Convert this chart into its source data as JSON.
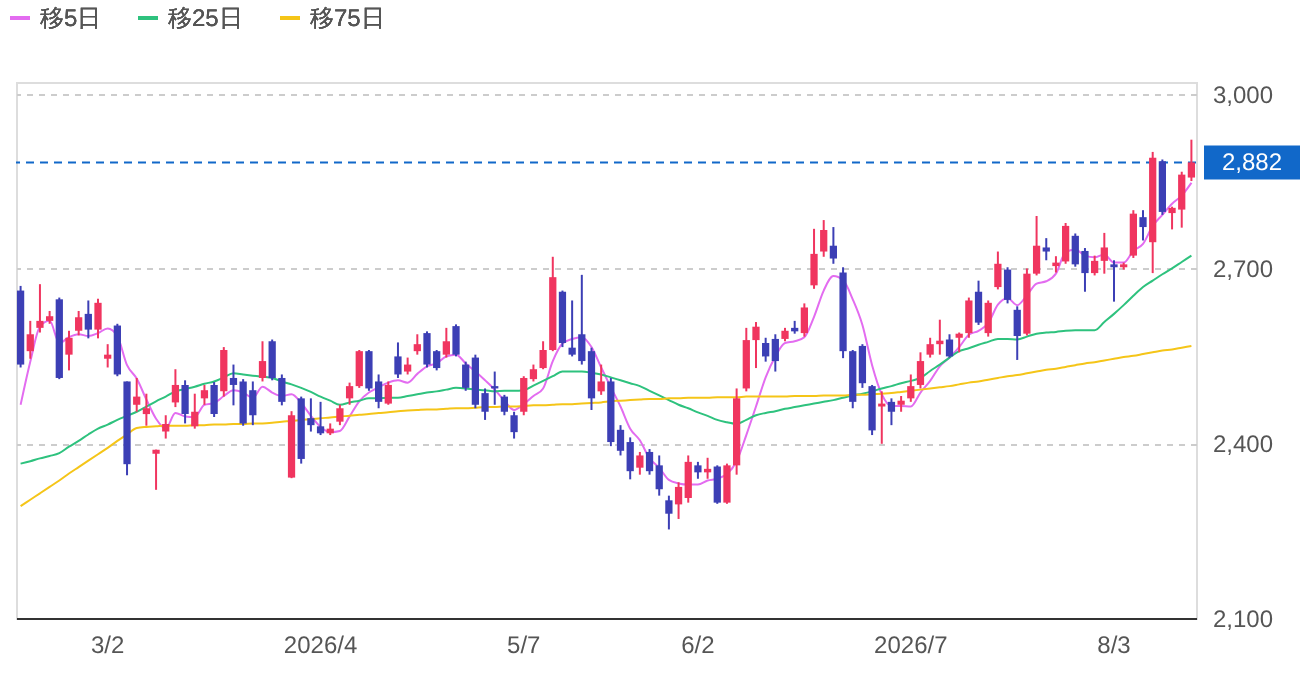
{
  "chart_data": {
    "type": "candlestick",
    "categories": [
      null,
      null,
      null,
      null,
      null,
      null,
      null,
      null,
      null,
      "3/2",
      null,
      null,
      null,
      null,
      null,
      null,
      null,
      null,
      null,
      null,
      null,
      null,
      null,
      null,
      null,
      null,
      null,
      null,
      null,
      null,
      null,
      "2026/4",
      null,
      null,
      null,
      null,
      null,
      null,
      null,
      null,
      null,
      null,
      null,
      null,
      null,
      null,
      null,
      null,
      null,
      null,
      null,
      null,
      "5/7",
      null,
      null,
      null,
      null,
      null,
      null,
      null,
      null,
      null,
      null,
      null,
      null,
      null,
      null,
      null,
      null,
      null,
      "6/2",
      null,
      null,
      null,
      null,
      null,
      null,
      null,
      null,
      null,
      null,
      null,
      null,
      null,
      null,
      null,
      null,
      null,
      null,
      null,
      null,
      null,
      "2026/7",
      null,
      null,
      null,
      null,
      null,
      null,
      null,
      null,
      null,
      null,
      null,
      null,
      null,
      null,
      null,
      null,
      null,
      null,
      null,
      null,
      "8/3",
      null,
      null,
      null,
      null,
      null,
      null,
      null,
      null
    ],
    "ohlc": [
      [
        2662,
        2670,
        2530,
        2535
      ],
      [
        2558,
        2610,
        2545,
        2587
      ],
      [
        2598,
        2673,
        2590,
        2610
      ],
      [
        2610,
        2627,
        2605,
        2618
      ],
      [
        2647,
        2650,
        2510,
        2512
      ],
      [
        2552,
        2593,
        2525,
        2581
      ],
      [
        2593,
        2627,
        2585,
        2616
      ],
      [
        2622,
        2645,
        2580,
        2595
      ],
      [
        2595,
        2648,
        2580,
        2641
      ],
      [
        2545,
        2570,
        2530,
        2552
      ],
      [
        2602,
        2605,
        2515,
        2518
      ],
      [
        2506,
        2506,
        2345,
        2364
      ],
      [
        2466,
        2512,
        2454,
        2480
      ],
      [
        2450,
        2485,
        2430,
        2460
      ],
      [
        2382,
        2389,
        2320,
        2389
      ],
      [
        2420,
        2448,
        2408,
        2433
      ],
      [
        2470,
        2527,
        2462,
        2500
      ],
      [
        2500,
        2508,
        2434,
        2450
      ],
      [
        2429,
        2485,
        2425,
        2454
      ],
      [
        2477,
        2500,
        2466,
        2491
      ],
      [
        2500,
        2505,
        2445,
        2450
      ],
      [
        2489,
        2565,
        2480,
        2560
      ],
      [
        2512,
        2535,
        2465,
        2500
      ],
      [
        2506,
        2510,
        2430,
        2434
      ],
      [
        2491,
        2506,
        2431,
        2448
      ],
      [
        2512,
        2575,
        2506,
        2541
      ],
      [
        2575,
        2578,
        2508,
        2512
      ],
      [
        2512,
        2518,
        2465,
        2471
      ],
      [
        2341,
        2455,
        2340,
        2448
      ],
      [
        2477,
        2480,
        2365,
        2373
      ],
      [
        2443,
        2477,
        2420,
        2431
      ],
      [
        2429,
        2471,
        2414,
        2417
      ],
      [
        2417,
        2434,
        2414,
        2425
      ],
      [
        2437,
        2466,
        2431,
        2460
      ],
      [
        2477,
        2504,
        2466,
        2498
      ],
      [
        2498,
        2560,
        2495,
        2558
      ],
      [
        2558,
        2560,
        2490,
        2494
      ],
      [
        2506,
        2518,
        2460,
        2471
      ],
      [
        2468,
        2506,
        2466,
        2500
      ],
      [
        2549,
        2573,
        2512,
        2518
      ],
      [
        2523,
        2547,
        2518,
        2535
      ],
      [
        2558,
        2587,
        2552,
        2570
      ],
      [
        2589,
        2592,
        2530,
        2535
      ],
      [
        2558,
        2560,
        2525,
        2529
      ],
      [
        2552,
        2598,
        2547,
        2575
      ],
      [
        2601,
        2604,
        2549,
        2552
      ],
      [
        2535,
        2540,
        2490,
        2495
      ],
      [
        2547,
        2552,
        2460,
        2466
      ],
      [
        2486,
        2494,
        2440,
        2454
      ],
      [
        2498,
        2523,
        2466,
        2494
      ],
      [
        2480,
        2483,
        2448,
        2454
      ],
      [
        2448,
        2454,
        2408,
        2419
      ],
      [
        2454,
        2515,
        2448,
        2512
      ],
      [
        2510,
        2535,
        2506,
        2527
      ],
      [
        2529,
        2575,
        2527,
        2560
      ],
      [
        2560,
        2720,
        2558,
        2685
      ],
      [
        2660,
        2662,
        2565,
        2572
      ],
      [
        2564,
        2645,
        2549,
        2552
      ],
      [
        2587,
        2689,
        2535,
        2541
      ],
      [
        2558,
        2564,
        2457,
        2477
      ],
      [
        2489,
        2535,
        2483,
        2506
      ],
      [
        2506,
        2512,
        2395,
        2402
      ],
      [
        2423,
        2431,
        2379,
        2387
      ],
      [
        2402,
        2410,
        2338,
        2352
      ],
      [
        2358,
        2385,
        2346,
        2379
      ],
      [
        2385,
        2390,
        2346,
        2352
      ],
      [
        2362,
        2379,
        2310,
        2321
      ],
      [
        2302,
        2310,
        2252,
        2279
      ],
      [
        2295,
        2333,
        2270,
        2325
      ],
      [
        2306,
        2379,
        2298,
        2368
      ],
      [
        2362,
        2368,
        2339,
        2350
      ],
      [
        2350,
        2375,
        2339,
        2356
      ],
      [
        2360,
        2362,
        2296,
        2298
      ],
      [
        2298,
        2365,
        2296,
        2362
      ],
      [
        2362,
        2494,
        2346,
        2477
      ],
      [
        2494,
        2598,
        2489,
        2577
      ],
      [
        2577,
        2608,
        2529,
        2600
      ],
      [
        2572,
        2581,
        2540,
        2549
      ],
      [
        2579,
        2587,
        2523,
        2541
      ],
      [
        2579,
        2598,
        2575,
        2593
      ],
      [
        2598,
        2610,
        2588,
        2592
      ],
      [
        2589,
        2640,
        2583,
        2633
      ],
      [
        2671,
        2768,
        2665,
        2725
      ],
      [
        2729,
        2783,
        2720,
        2766
      ],
      [
        2739,
        2771,
        2708,
        2717
      ],
      [
        2693,
        2702,
        2546,
        2558
      ],
      [
        2558,
        2560,
        2460,
        2471
      ],
      [
        2567,
        2570,
        2495,
        2503
      ],
      [
        2498,
        2500,
        2414,
        2422
      ],
      [
        2463,
        2489,
        2399,
        2468
      ],
      [
        2471,
        2477,
        2431,
        2454
      ],
      [
        2466,
        2481,
        2454,
        2473
      ],
      [
        2477,
        2518,
        2471,
        2498
      ],
      [
        2500,
        2556,
        2494,
        2541
      ],
      [
        2552,
        2581,
        2547,
        2570
      ],
      [
        2570,
        2612,
        2552,
        2576
      ],
      [
        2578,
        2587,
        2547,
        2549
      ],
      [
        2581,
        2590,
        2556,
        2588
      ],
      [
        2589,
        2650,
        2581,
        2645
      ],
      [
        2660,
        2679,
        2603,
        2607
      ],
      [
        2589,
        2645,
        2583,
        2641
      ],
      [
        2668,
        2729,
        2664,
        2708
      ],
      [
        2698,
        2702,
        2640,
        2646
      ],
      [
        2629,
        2635,
        2543,
        2584
      ],
      [
        2588,
        2700,
        2585,
        2691
      ],
      [
        2691,
        2790,
        2688,
        2739
      ],
      [
        2736,
        2752,
        2714,
        2729
      ],
      [
        2704,
        2721,
        2693,
        2710
      ],
      [
        2712,
        2778,
        2708,
        2773
      ],
      [
        2756,
        2760,
        2703,
        2707
      ],
      [
        2730,
        2735,
        2660,
        2692
      ],
      [
        2692,
        2722,
        2688,
        2713
      ],
      [
        2713,
        2761,
        2691,
        2736
      ],
      [
        2707,
        2714,
        2643,
        2702
      ],
      [
        2702,
        2710,
        2698,
        2707
      ],
      [
        2722,
        2800,
        2718,
        2794
      ],
      [
        2788,
        2800,
        2748,
        2771
      ],
      [
        2745,
        2900,
        2692,
        2890
      ],
      [
        2884,
        2887,
        2792,
        2797
      ],
      [
        2795,
        2806,
        2767,
        2804
      ],
      [
        2801,
        2866,
        2770,
        2861
      ],
      [
        2856,
        2921,
        2850,
        2882
      ]
    ],
    "colors": [
      "#3c3fb5",
      "#f0355f",
      "#f0355f",
      "#f0355f",
      "#3c3fb5",
      "#f0355f",
      "#f0355f",
      "#3c3fb5",
      "#f0355f",
      "#f0355f",
      "#3c3fb5",
      "#3c3fb5",
      "#f0355f",
      "#f0355f",
      "#f0355f",
      "#f0355f",
      "#f0355f",
      "#3c3fb5",
      "#f0355f",
      "#f0355f",
      "#3c3fb5",
      "#f0355f",
      "#3c3fb5",
      "#3c3fb5",
      "#3c3fb5",
      "#f0355f",
      "#3c3fb5",
      "#3c3fb5",
      "#f0355f",
      "#3c3fb5",
      "#3c3fb5",
      "#3c3fb5",
      "#f0355f",
      "#f0355f",
      "#f0355f",
      "#f0355f",
      "#3c3fb5",
      "#3c3fb5",
      "#f0355f",
      "#3c3fb5",
      "#f0355f",
      "#f0355f",
      "#3c3fb5",
      "#3c3fb5",
      "#f0355f",
      "#3c3fb5",
      "#3c3fb5",
      "#3c3fb5",
      "#3c3fb5",
      "#3c3fb5",
      "#3c3fb5",
      "#3c3fb5",
      "#f0355f",
      "#f0355f",
      "#f0355f",
      "#f0355f",
      "#3c3fb5",
      "#3c3fb5",
      "#3c3fb5",
      "#3c3fb5",
      "#f0355f",
      "#3c3fb5",
      "#3c3fb5",
      "#3c3fb5",
      "#f0355f",
      "#3c3fb5",
      "#3c3fb5",
      "#3c3fb5",
      "#f0355f",
      "#f0355f",
      "#3c3fb5",
      "#f0355f",
      "#3c3fb5",
      "#f0355f",
      "#f0355f",
      "#f0355f",
      "#f0355f",
      "#3c3fb5",
      "#3c3fb5",
      "#f0355f",
      "#3c3fb5",
      "#f0355f",
      "#f0355f",
      "#f0355f",
      "#3c3fb5",
      "#3c3fb5",
      "#3c3fb5",
      "#3c3fb5",
      "#3c3fb5",
      "#f0355f",
      "#3c3fb5",
      "#f0355f",
      "#f0355f",
      "#f0355f",
      "#f0355f",
      "#f0355f",
      "#3c3fb5",
      "#f0355f",
      "#f0355f",
      "#3c3fb5",
      "#f0355f",
      "#f0355f",
      "#3c3fb5",
      "#3c3fb5",
      "#f0355f",
      "#f0355f",
      "#3c3fb5",
      "#f0355f",
      "#f0355f",
      "#3c3fb5",
      "#3c3fb5",
      "#f0355f",
      "#f0355f",
      "#3c3fb5",
      "#f0355f",
      "#f0355f",
      "#3c3fb5",
      "#f0355f",
      "#3c3fb5",
      "#f0355f",
      "#f0355f",
      "#f0355f"
    ],
    "series": [
      {
        "name": "移5日",
        "type": "line",
        "color": "#e36cf0",
        "values": [
          2466,
          2540,
          2600,
          2610,
          2572,
          2582,
          2587,
          2584,
          2589,
          2597,
          2584,
          2534,
          2511,
          2475,
          2442,
          2425,
          2452,
          2446,
          2445,
          2466,
          2469,
          2481,
          2491,
          2487,
          2478,
          2497,
          2487,
          2481,
          2484,
          2469,
          2447,
          2428,
          2419,
          2421,
          2446,
          2472,
          2487,
          2496,
          2504,
          2508,
          2504,
          2519,
          2532,
          2537,
          2549,
          2552,
          2537,
          2523,
          2508,
          2492,
          2473,
          2457,
          2467,
          2481,
          2494,
          2541,
          2571,
          2579,
          2582,
          2565,
          2530,
          2496,
          2463,
          2425,
          2405,
          2374,
          2358,
          2337,
          2331,
          2329,
          2329,
          2336,
          2339,
          2347,
          2369,
          2414,
          2463,
          2513,
          2549,
          2572,
          2575,
          2582,
          2617,
          2662,
          2687,
          2680,
          2647,
          2603,
          2534,
          2484,
          2464,
          2464,
          2463,
          2487,
          2507,
          2532,
          2547,
          2565,
          2586,
          2593,
          2606,
          2638,
          2649,
          2637,
          2654,
          2674,
          2678,
          2691,
          2728,
          2732,
          2722,
          2719,
          2724,
          2710,
          2710,
          2730,
          2742,
          2773,
          2792,
          2811,
          2825,
          2847
        ]
      },
      {
        "name": "移25日",
        "type": "line",
        "color": "#2ec27e",
        "values": [
          2365,
          2369,
          2374,
          2378,
          2383,
          2394,
          2404,
          2415,
          2425,
          2432,
          2440,
          2447,
          2454,
          2463,
          2472,
          2480,
          2489,
          2493,
          2497,
          2502,
          2506,
          2513,
          2520,
          2518,
          2516,
          2514,
          2512,
          2506,
          2501,
          2495,
          2488,
          2480,
          2473,
          2466,
          2470,
          2473,
          2477,
          2477,
          2478,
          2478,
          2481,
          2484,
          2487,
          2489,
          2492,
          2495,
          2494,
          2492,
          2491,
          2489,
          2490,
          2490,
          2491,
          2499,
          2507,
          2515,
          2523,
          2523,
          2523,
          2521,
          2518,
          2513,
          2508,
          2503,
          2498,
          2490,
          2482,
          2474,
          2466,
          2460,
          2453,
          2447,
          2440,
          2436,
          2433,
          2440,
          2448,
          2452,
          2455,
          2459,
          2462,
          2465,
          2468,
          2471,
          2474,
          2478,
          2482,
          2485,
          2489,
          2494,
          2498,
          2503,
          2507,
          2512,
          2524,
          2535,
          2547,
          2558,
          2563,
          2569,
          2574,
          2579,
          2579,
          2578,
          2583,
          2588,
          2590,
          2591,
          2593,
          2594,
          2594,
          2594,
          2608,
          2622,
          2637,
          2653,
          2668,
          2679,
          2690,
          2700,
          2711,
          2722
        ]
      },
      {
        "name": "移75日",
        "type": "line",
        "color": "#f5c518",
        "values": [
          2292,
          2303,
          2314,
          2325,
          2336,
          2348,
          2359,
          2370,
          2381,
          2392,
          2404,
          2415,
          2426,
          2428,
          2429,
          2430,
          2430,
          2430,
          2431,
          2431,
          2432,
          2432,
          2433,
          2433,
          2434,
          2434,
          2435,
          2437,
          2438,
          2440,
          2441,
          2443,
          2444,
          2446,
          2447,
          2449,
          2450,
          2452,
          2453,
          2455,
          2456,
          2457,
          2458,
          2458,
          2459,
          2460,
          2460,
          2461,
          2462,
          2462,
          2463,
          2463,
          2464,
          2465,
          2465,
          2466,
          2467,
          2467,
          2468,
          2469,
          2470,
          2472,
          2473,
          2474,
          2475,
          2476,
          2476,
          2477,
          2477,
          2478,
          2478,
          2478,
          2479,
          2479,
          2479,
          2480,
          2480,
          2480,
          2480,
          2480,
          2481,
          2481,
          2481,
          2482,
          2482,
          2482,
          2483,
          2483,
          2484,
          2485,
          2486,
          2488,
          2490,
          2492,
          2494,
          2496,
          2498,
          2501,
          2504,
          2506,
          2509,
          2512,
          2515,
          2517,
          2520,
          2523,
          2526,
          2528,
          2531,
          2534,
          2537,
          2539,
          2542,
          2545,
          2548,
          2550,
          2553,
          2556,
          2559,
          2561,
          2564,
          2567
        ]
      }
    ],
    "ylim": [
      2100,
      3020
    ],
    "yticks": [
      {
        "value": 2100,
        "label": "2,100"
      },
      {
        "value": 2400,
        "label": "2,400"
      },
      {
        "value": 2700,
        "label": "2,700"
      },
      {
        "value": 3000,
        "label": "3,000"
      }
    ],
    "ref_lines": [
      {
        "axis": "y",
        "value": 2882,
        "label": "2,882",
        "color": "#1168c9",
        "line_style": "dashed"
      }
    ],
    "grid": "y",
    "legend": "top left"
  }
}
